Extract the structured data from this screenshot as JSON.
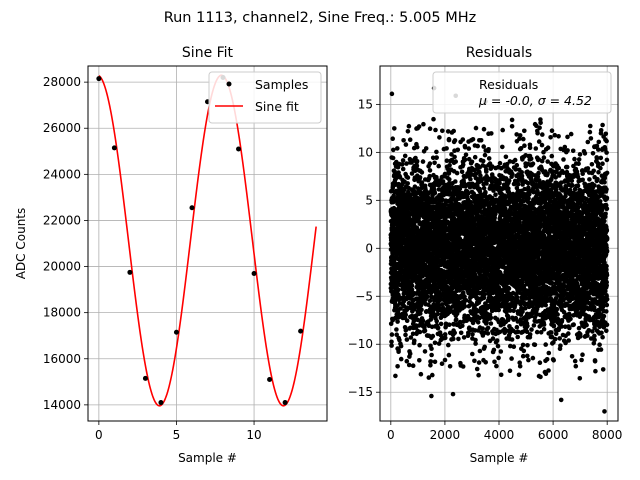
{
  "figure": {
    "suptitle": "Run 1113, channel2, Sine Freq.: 5.005 MHz"
  },
  "chart_data": [
    {
      "type": "scatter+line",
      "title": "Sine Fit",
      "xlabel": "Sample #",
      "ylabel": "ADC Counts",
      "xlim": [
        -0.7,
        14.7
      ],
      "ylim": [
        13300,
        28700
      ],
      "xticks": [
        0,
        5,
        10
      ],
      "xtick_labels": [
        "0",
        "5",
        "10"
      ],
      "yticks": [
        14000,
        16000,
        18000,
        20000,
        22000,
        24000,
        26000,
        28000
      ],
      "ytick_labels": [
        "14000",
        "16000",
        "18000",
        "20000",
        "22000",
        "24000",
        "26000",
        "28000"
      ],
      "grid": true,
      "legend": {
        "position": "top-right",
        "entries": [
          "Samples",
          "Sine fit"
        ]
      },
      "series": [
        {
          "name": "Samples",
          "kind": "scatter",
          "color": "#000000",
          "x": [
            0,
            1,
            2,
            3,
            4,
            5,
            6,
            7,
            8,
            9,
            10,
            11,
            12,
            13
          ],
          "y": [
            28150,
            25150,
            19750,
            15150,
            14100,
            17150,
            22550,
            27150,
            28200,
            25100,
            19700,
            15100,
            14100,
            17200
          ]
        },
        {
          "name": "Sine fit",
          "kind": "line",
          "color": "#ff0000",
          "model": {
            "offset": 21130,
            "amplitude": 7170,
            "period": 7.99,
            "peak_at": 7.9,
            "x_start": 0,
            "x_end": 14
          }
        }
      ]
    },
    {
      "type": "scatter",
      "title": "Residuals",
      "xlabel": "Sample #",
      "ylabel": "",
      "xlim": [
        -400,
        8400
      ],
      "ylim": [
        -18,
        19
      ],
      "xticks": [
        0,
        2000,
        4000,
        6000,
        8000
      ],
      "xtick_labels": [
        "0",
        "2000",
        "4000",
        "6000",
        "8000"
      ],
      "yticks": [
        -15,
        -10,
        -5,
        0,
        5,
        10,
        15
      ],
      "ytick_labels": [
        "−15",
        "−10",
        "−5",
        "0",
        "5",
        "10",
        "15"
      ],
      "grid": true,
      "legend": {
        "position": "top-right",
        "entries": [
          "Residuals",
          "μ = -0.0, σ = 4.52"
        ]
      },
      "series": [
        {
          "name": "Residuals",
          "kind": "scatter",
          "color": "#000000",
          "n_points": 8000,
          "mean": 0.0,
          "sigma": 4.52,
          "outliers": [
            {
              "x": 40,
              "y": 16.1
            },
            {
              "x": 1600,
              "y": 16.7
            },
            {
              "x": 2400,
              "y": 15.9
            },
            {
              "x": 7900,
              "y": -17.0
            },
            {
              "x": 6300,
              "y": -15.8
            },
            {
              "x": 2300,
              "y": -15.2
            },
            {
              "x": 1500,
              "y": -15.4
            },
            {
              "x": 3500,
              "y": 15.3
            }
          ]
        }
      ]
    }
  ]
}
